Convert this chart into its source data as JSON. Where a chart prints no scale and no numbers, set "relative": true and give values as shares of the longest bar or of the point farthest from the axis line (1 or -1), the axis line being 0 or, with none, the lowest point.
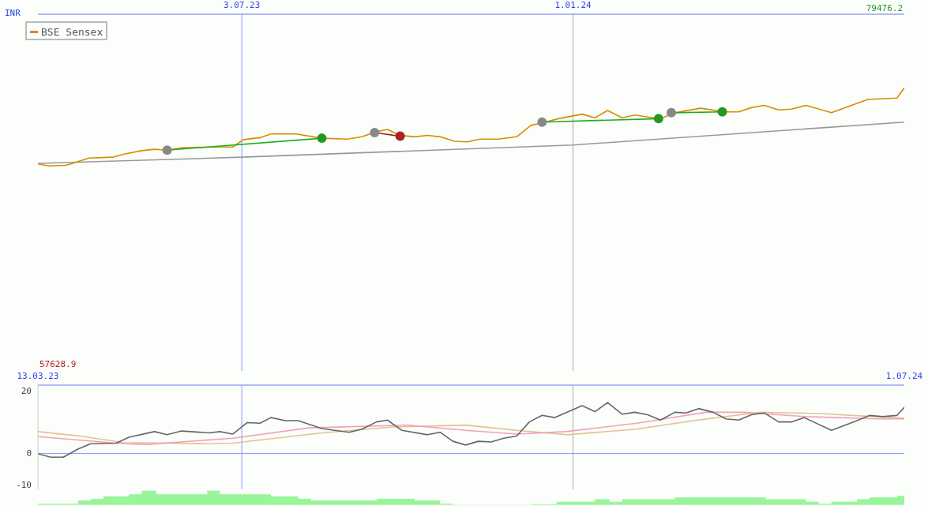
{
  "chart_data": [
    {
      "type": "line",
      "ylabel": "INR",
      "legend": "top left",
      "relative": true,
      "xlim": [
        "2023-03-13",
        "2024-07-01"
      ],
      "xticks": [
        {
          "value": "2023-07-03",
          "label": "3.07.23"
        },
        {
          "value": "2024-01-01",
          "label": "1.01.24"
        }
      ],
      "tick_labels": "x",
      "annotations": [
        "57628.9",
        "79476.2"
      ],
      "ref_lines": [
        {
          "axis": "x",
          "value": "2023-07-03",
          "color": "#8899ff"
        },
        {
          "axis": "x",
          "value": "2024-01-01",
          "color": "#aaaaaa"
        }
      ],
      "series": [
        {
          "color": "#999999",
          "x": [
            "2023-03-13",
            "2023-07-03",
            "2024-01-01",
            "2024-07-01"
          ],
          "values": [
            0.733,
            0.755,
            0.798,
            0.879
          ]
        },
        {
          "name": "BSE Sensex",
          "color": "#d98c00",
          "x": [
            "2023-03-13",
            "2023-03-19",
            "2023-03-28",
            "2023-03-31",
            "2023-04-10",
            "2023-04-23",
            "2023-04-29",
            "2023-05-09",
            "2023-05-16",
            "2023-05-23",
            "2023-05-31",
            "2023-06-18",
            "2023-06-28",
            "2023-07-04",
            "2023-07-13",
            "2023-07-19",
            "2023-08-02",
            "2023-08-16",
            "2023-08-30",
            "2023-09-07",
            "2023-09-15",
            "2023-09-21",
            "2023-09-28",
            "2023-10-06",
            "2023-10-13",
            "2023-10-20",
            "2023-10-28",
            "2023-11-04",
            "2023-11-11",
            "2023-11-21",
            "2023-12-01",
            "2023-12-09",
            "2023-12-15",
            "2023-12-24",
            "2024-01-06",
            "2024-01-13",
            "2024-01-20",
            "2024-01-28",
            "2024-02-04",
            "2024-02-11",
            "2024-02-18",
            "2024-02-26",
            "2024-03-11",
            "2024-03-25",
            "2024-04-01",
            "2024-04-08",
            "2024-04-15",
            "2024-04-23",
            "2024-04-30",
            "2024-05-08",
            "2024-05-22",
            "2024-06-11",
            "2024-06-27",
            "2024-07-01"
          ],
          "values": [
            0.731,
            0.724,
            0.726,
            0.731,
            0.752,
            0.755,
            0.765,
            0.778,
            0.783,
            0.78,
            0.788,
            0.791,
            0.791,
            0.817,
            0.824,
            0.837,
            0.837,
            0.822,
            0.819,
            0.827,
            0.845,
            0.853,
            0.832,
            0.827,
            0.832,
            0.827,
            0.811,
            0.809,
            0.819,
            0.819,
            0.827,
            0.868,
            0.876,
            0.891,
            0.907,
            0.894,
            0.92,
            0.894,
            0.904,
            0.897,
            0.891,
            0.912,
            0.928,
            0.915,
            0.915,
            0.93,
            0.938,
            0.922,
            0.925,
            0.938,
            0.912,
            0.959,
            0.964,
            1
          ]
        },
        {
          "color": "#22aa22",
          "x": [
            "2023-05-23",
            "2023-08-16"
          ],
          "values": [
            0.78,
            0.822
          ]
        },
        {
          "color": "#aa2222",
          "x": [
            "2023-09-14",
            "2023-09-28"
          ],
          "values": [
            0.842,
            0.829
          ]
        },
        {
          "color": "#22aa22",
          "x": [
            "2023-12-15",
            "2024-02-17"
          ],
          "values": [
            0.879,
            0.891
          ]
        },
        {
          "color": "#22aa22",
          "x": [
            "2024-02-24",
            "2024-03-23"
          ],
          "values": [
            0.912,
            0.915
          ]
        },
        {
          "type": "scatter",
          "color": "#888888",
          "x": [
            "2023-05-23",
            "2023-08-16",
            "2023-09-14",
            "2023-09-28",
            "2023-12-15",
            "2024-02-17",
            "2024-02-24",
            "2024-03-23"
          ],
          "values": [
            0.78,
            0.822,
            0.842,
            0.829,
            0.879,
            0.891,
            0.912,
            0.915
          ],
          "colors": [
            "#888888",
            "#229922",
            "#888888",
            "#aa2222",
            "#888888",
            "#229922",
            "#888888",
            "#229922"
          ]
        }
      ]
    },
    {
      "type": "line",
      "xlim": [
        "2023-03-13",
        "2024-07-01"
      ],
      "xticks": [
        {
          "value": "2023-03-13",
          "label": "13.03.23"
        },
        {
          "value": "2024-07-01",
          "label": "1.07.24"
        }
      ],
      "ylim": [
        -11.5,
        21.9
      ],
      "yticks": [
        20,
        0,
        -10
      ],
      "ref_lines": [
        {
          "axis": "x",
          "value": "2023-07-03",
          "color": "#8899ff"
        },
        {
          "axis": "x",
          "value": "2024-01-01",
          "color": "#aaaaaa"
        },
        {
          "axis": "y",
          "value": 0,
          "color": "#8899ff"
        }
      ],
      "series": [
        {
          "color": "#e0c490",
          "x": [
            "2023-03-13",
            "2023-04-05",
            "2023-04-29",
            "2023-06-15",
            "2023-06-28",
            "2023-08-16",
            "2023-09-24",
            "2023-11-03",
            "2023-12-01",
            "2023-12-29",
            "2024-02-05",
            "2024-03-07",
            "2024-04-13",
            "2024-05-16",
            "2024-06-08",
            "2024-07-01"
          ],
          "values": [
            7.0,
            5.6,
            3.5,
            3.1,
            3.3,
            6.6,
            8.5,
            9.1,
            7.4,
            6.0,
            7.8,
            10.5,
            13.2,
            12.8,
            12.0,
            11.3
          ]
        },
        {
          "color": "#f5a0b8",
          "x": [
            "2023-03-13",
            "2023-04-29",
            "2023-05-12",
            "2023-06-28",
            "2023-08-09",
            "2023-10-02",
            "2023-11-03",
            "2023-12-01",
            "2023-12-28",
            "2024-02-05",
            "2024-03-14",
            "2024-04-04",
            "2024-05-08",
            "2024-06-16",
            "2024-07-01"
          ],
          "values": [
            5.4,
            3.1,
            2.9,
            4.9,
            8.2,
            9.1,
            7.4,
            6.2,
            7.0,
            9.7,
            13.2,
            13.2,
            11.8,
            11.1,
            11.1
          ]
        },
        {
          "color": "#666666",
          "x": [
            "2023-03-13",
            "2023-03-20",
            "2023-03-27",
            "2023-04-04",
            "2023-04-11",
            "2023-04-25",
            "2023-05-02",
            "2023-05-16",
            "2023-05-23",
            "2023-05-31",
            "2023-06-15",
            "2023-06-21",
            "2023-06-28",
            "2023-07-06",
            "2023-07-13",
            "2023-07-19",
            "2023-07-27",
            "2023-08-03",
            "2023-08-16",
            "2023-08-31",
            "2023-09-07",
            "2023-09-15",
            "2023-09-21",
            "2023-09-29",
            "2023-10-13",
            "2023-10-20",
            "2023-10-27",
            "2023-11-03",
            "2023-11-10",
            "2023-11-17",
            "2023-11-24",
            "2023-12-01",
            "2023-12-08",
            "2023-12-15",
            "2023-12-22",
            "2024-01-06",
            "2024-01-13",
            "2024-01-20",
            "2024-01-28",
            "2024-02-04",
            "2024-02-11",
            "2024-02-18",
            "2024-02-26",
            "2024-03-03",
            "2024-03-10",
            "2024-03-18",
            "2024-03-25",
            "2024-04-01",
            "2024-04-08",
            "2024-04-15",
            "2024-04-23",
            "2024-04-30",
            "2024-05-07",
            "2024-05-22",
            "2024-06-05",
            "2024-06-12",
            "2024-06-19",
            "2024-06-27",
            "2024-07-01"
          ],
          "values": [
            -0.1,
            -1.2,
            -1.2,
            1.4,
            3.1,
            3.3,
            5.2,
            7.0,
            6.0,
            7.2,
            6.6,
            7.0,
            6.2,
            9.9,
            9.7,
            11.5,
            10.5,
            10.5,
            8.0,
            6.8,
            7.8,
            10.1,
            10.7,
            7.4,
            6.0,
            6.8,
            3.9,
            2.7,
            3.9,
            3.7,
            4.9,
            5.6,
            10.1,
            12.2,
            11.5,
            15.3,
            13.4,
            16.3,
            12.6,
            13.2,
            12.4,
            10.7,
            13.2,
            13.0,
            14.4,
            13.2,
            11.1,
            10.7,
            12.4,
            13.0,
            10.1,
            10.1,
            11.5,
            7.4,
            10.5,
            12.2,
            11.8,
            12.2,
            14.8
          ]
        }
      ]
    },
    {
      "type": "area",
      "relative": true,
      "tick_labels": false,
      "xlim": [
        "2023-03-13",
        "2024-07-01"
      ],
      "series": [
        {
          "color": "#99f599",
          "x": [
            "2023-03-13",
            "2023-03-13",
            "2023-04-04",
            "2023-04-04",
            "2023-04-11",
            "2023-04-11",
            "2023-04-18",
            "2023-04-18",
            "2023-05-02",
            "2023-05-02",
            "2023-05-09",
            "2023-05-09",
            "2023-05-17",
            "2023-05-17",
            "2023-06-14",
            "2023-06-14",
            "2023-06-21",
            "2023-06-21",
            "2023-07-19",
            "2023-07-19",
            "2023-08-03",
            "2023-08-03",
            "2023-08-10",
            "2023-08-10",
            "2023-09-15",
            "2023-09-15",
            "2023-10-06",
            "2023-10-06",
            "2023-10-20",
            "2023-10-20",
            "2023-10-27",
            "2023-10-27",
            "2023-12-09",
            "2023-12-09",
            "2023-12-23",
            "2023-12-23",
            "2024-01-13",
            "2024-01-13",
            "2024-01-21",
            "2024-01-21",
            "2024-01-28",
            "2024-01-28",
            "2024-02-26",
            "2024-02-26",
            "2024-04-16",
            "2024-04-16",
            "2024-05-08",
            "2024-05-08",
            "2024-05-15",
            "2024-05-15",
            "2024-05-22",
            "2024-05-22",
            "2024-06-05",
            "2024-06-05",
            "2024-06-12",
            "2024-06-12",
            "2024-06-27",
            "2024-06-27",
            "2024-07-01",
            "2024-07-01"
          ],
          "values": [
            0,
            0.09,
            0.09,
            0.31,
            0.31,
            0.44,
            0.44,
            0.6,
            0.6,
            0.76,
            0.76,
            1,
            1,
            0.76,
            0.76,
            1,
            1,
            0.76,
            0.76,
            0.6,
            0.6,
            0.44,
            0.44,
            0.31,
            0.31,
            0.44,
            0.44,
            0.31,
            0.31,
            0.09,
            0.09,
            0,
            0,
            0.07,
            0.07,
            0.23,
            0.23,
            0.41,
            0.41,
            0.23,
            0.23,
            0.41,
            0.41,
            0.54,
            0.54,
            0.41,
            0.41,
            0.23,
            0.23,
            0.09,
            0.09,
            0.23,
            0.23,
            0.41,
            0.41,
            0.54,
            0.54,
            0.65,
            0.65,
            0
          ]
        }
      ]
    }
  ]
}
